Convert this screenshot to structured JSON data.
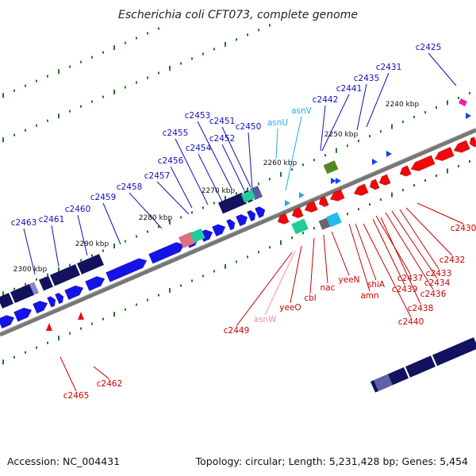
{
  "title": "Escherichia coli CFT073, complete genome",
  "footer": {
    "accession": "Accession: NC_004431",
    "summary": "Topology: circular; Length: 5,231,428 bp; Genes: 5,454"
  },
  "colors": {
    "forward_cds": "#1414e6",
    "reverse_cds": "#ee0a0a",
    "forward_label": "#1010c0",
    "reverse_label": "#cc0000",
    "trna_forward": "#22aaee",
    "trna_reverse": "#ff88bb",
    "dark_feature": "#12125e",
    "backbone": "#777777",
    "dot": "#227722"
  },
  "ticks": [
    {
      "text": "2240 kbp"
    },
    {
      "text": "2250 kbp"
    },
    {
      "text": "2260 kbp"
    },
    {
      "text": "2270 kbp"
    },
    {
      "text": "2280 kbp"
    },
    {
      "text": "2290 kbp"
    },
    {
      "text": "2300 kbp"
    }
  ],
  "labels_top": [
    {
      "text": "c2425",
      "kind": "forward"
    },
    {
      "text": "c2431",
      "kind": "forward"
    },
    {
      "text": "c2435",
      "kind": "forward"
    },
    {
      "text": "c2441",
      "kind": "forward"
    },
    {
      "text": "c2442",
      "kind": "forward"
    },
    {
      "text": "asnV",
      "kind": "trna"
    },
    {
      "text": "asnU",
      "kind": "trna"
    },
    {
      "text": "c2450",
      "kind": "forward"
    },
    {
      "text": "c2451",
      "kind": "forward"
    },
    {
      "text": "c2452",
      "kind": "forward"
    },
    {
      "text": "c2453",
      "kind": "forward"
    },
    {
      "text": "c2454",
      "kind": "forward"
    },
    {
      "text": "c2455",
      "kind": "forward"
    },
    {
      "text": "c2456",
      "kind": "forward"
    },
    {
      "text": "c2457",
      "kind": "forward"
    },
    {
      "text": "c2458",
      "kind": "forward"
    },
    {
      "text": "c2459",
      "kind": "forward"
    },
    {
      "text": "c2460",
      "kind": "forward"
    },
    {
      "text": "c2461",
      "kind": "forward"
    },
    {
      "text": "c2463",
      "kind": "forward"
    }
  ],
  "labels_bottom": [
    {
      "text": "c2430",
      "kind": "reverse"
    },
    {
      "text": "c2432",
      "kind": "reverse"
    },
    {
      "text": "c2433",
      "kind": "reverse"
    },
    {
      "text": "c2434",
      "kind": "reverse"
    },
    {
      "text": "c2436",
      "kind": "reverse"
    },
    {
      "text": "c2437",
      "kind": "reverse"
    },
    {
      "text": "c2439",
      "kind": "reverse"
    },
    {
      "text": "c2438",
      "kind": "reverse"
    },
    {
      "text": "c2440",
      "kind": "reverse"
    },
    {
      "text": "shiA",
      "kind": "reverse"
    },
    {
      "text": "amn",
      "kind": "reverse"
    },
    {
      "text": "yeeN",
      "kind": "reverse"
    },
    {
      "text": "nac",
      "kind": "reverse"
    },
    {
      "text": "cbl",
      "kind": "reverse"
    },
    {
      "text": "yeeO",
      "kind": "reverse"
    },
    {
      "text": "asnW",
      "kind": "trna_rev"
    },
    {
      "text": "c2449",
      "kind": "reverse"
    },
    {
      "text": "c2462",
      "kind": "reverse"
    },
    {
      "text": "c2465",
      "kind": "reverse"
    }
  ]
}
